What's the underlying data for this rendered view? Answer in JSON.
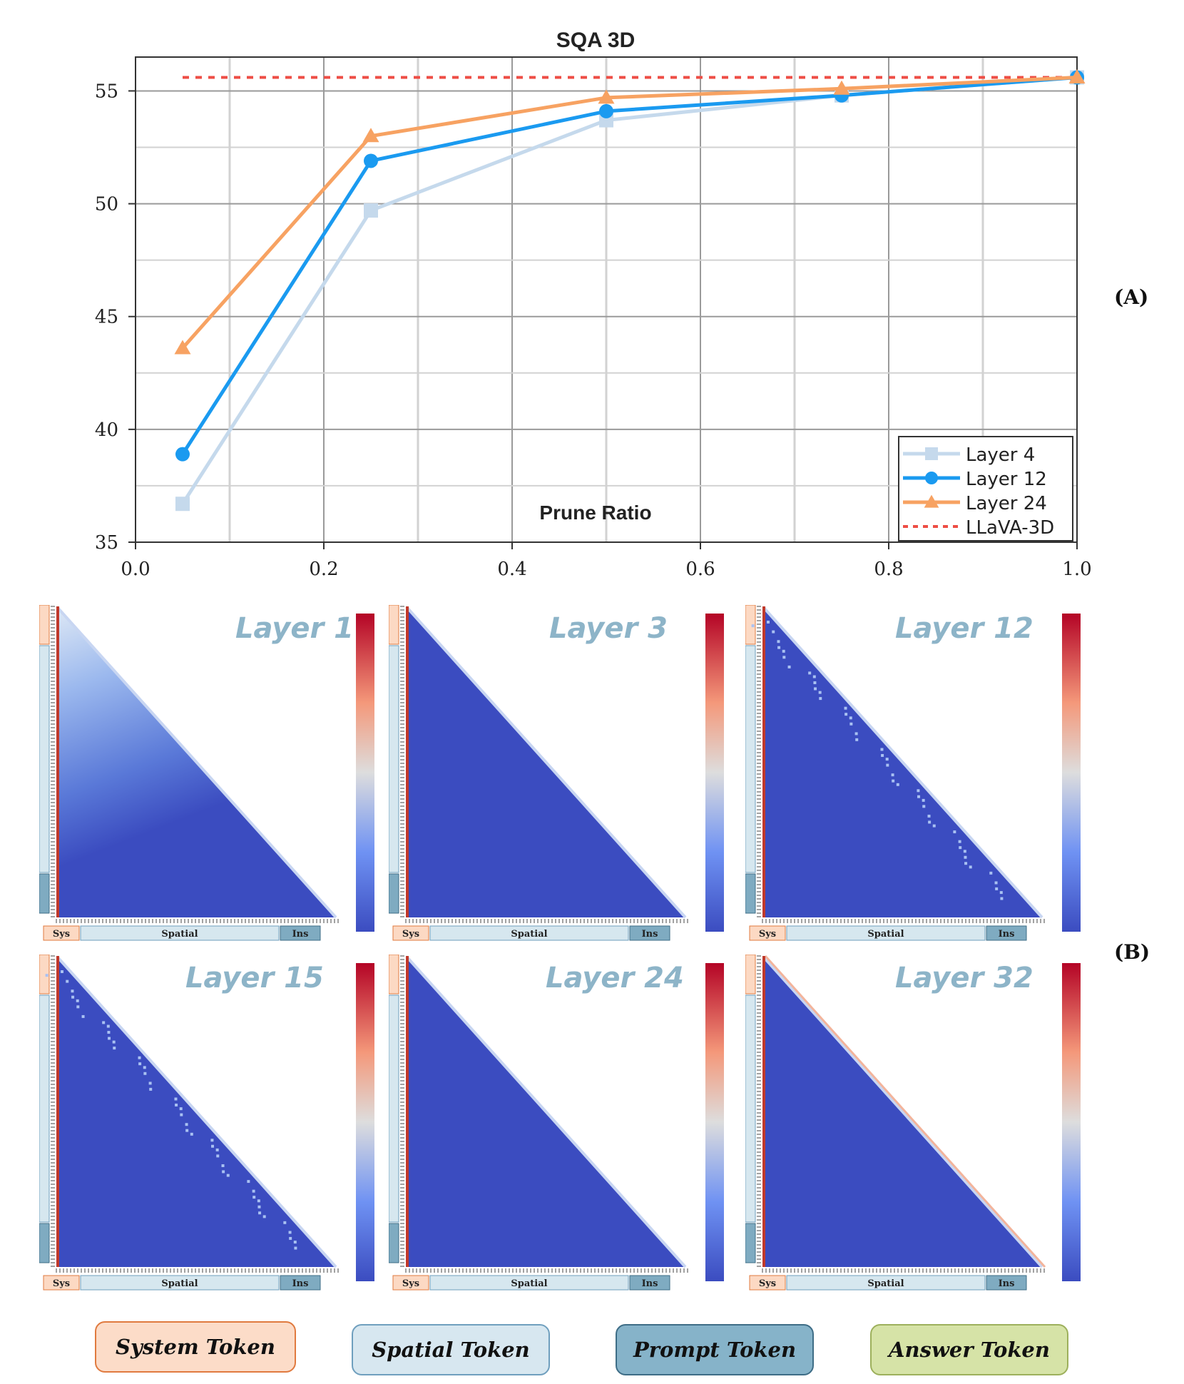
{
  "chart_data": [
    {
      "type": "line",
      "title": "SQA 3D",
      "xlabel": "Prune Ratio",
      "ylabel": "",
      "xlim": [
        0.0,
        1.0
      ],
      "ylim": [
        35,
        56.5
      ],
      "xticks": [
        "0.0",
        "0.2",
        "0.4",
        "0.6",
        "0.8",
        "1.0"
      ],
      "yticks": [
        "35",
        "40",
        "45",
        "50",
        "55"
      ],
      "grid": true,
      "legend_position": "bottom-right",
      "x": [
        0.05,
        0.25,
        0.5,
        0.75,
        1.0
      ],
      "series": [
        {
          "name": "Layer 4",
          "values": [
            36.7,
            49.7,
            53.7,
            54.8,
            55.6
          ],
          "color": "#c5d9ec",
          "marker": "square"
        },
        {
          "name": "Layer 12",
          "values": [
            38.9,
            51.9,
            54.1,
            54.8,
            55.6
          ],
          "color": "#1a9af0",
          "marker": "circle"
        },
        {
          "name": "Layer 24",
          "values": [
            43.6,
            53.0,
            54.7,
            55.1,
            55.6
          ],
          "color": "#f7a262",
          "marker": "triangle"
        }
      ],
      "reference_line": {
        "name": "LLaVA-3D",
        "value": 55.6,
        "color": "#ee4e45",
        "style": "dotted"
      }
    },
    {
      "type": "heatmap",
      "panels": [
        {
          "title": "Layer 1"
        },
        {
          "title": "Layer 3"
        },
        {
          "title": "Layer 12"
        },
        {
          "title": "Layer 15"
        },
        {
          "title": "Layer 24"
        },
        {
          "title": "Layer 32"
        }
      ],
      "axis_segments": [
        "Sys",
        "Spatial",
        "Ins"
      ],
      "colormap": "coolwarm"
    }
  ],
  "panel_labels": {
    "a": "(A)",
    "b": "(B)"
  },
  "legend": [
    {
      "label": "System Token",
      "fill": "#fcdcc8",
      "border": "#e07a3f"
    },
    {
      "label": "Spatial Token",
      "fill": "#d7e7f0",
      "border": "#6f9fbe"
    },
    {
      "label": "Prompt Token",
      "fill": "#86b3c9",
      "border": "#3e6d86"
    },
    {
      "label": "Answer Token",
      "fill": "#d6e3a7",
      "border": "#9db05c"
    }
  ],
  "colors": {
    "heat_low": "#3b4cc0",
    "heat_mid": "#dddddd",
    "heat_high": "#b40426",
    "sys_segment": "#fcd9c3",
    "spatial_segment": "#d6e7ef",
    "ins_segment": "#7fabc1"
  }
}
